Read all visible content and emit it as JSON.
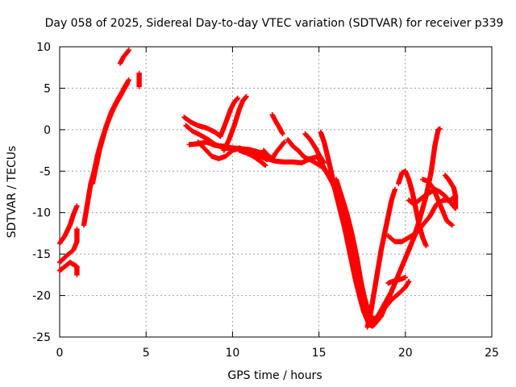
{
  "chart_data": {
    "type": "scatter",
    "title": "Day 058 of 2025, Sidereal Day-to-day VTEC variation (SDTVAR) for receiver p339",
    "xlabel": "GPS time / hours",
    "ylabel": "SDTVAR / TECUs",
    "xlim": [
      0,
      25
    ],
    "ylim": [
      -25,
      10
    ],
    "xticks": [
      0,
      5,
      10,
      15,
      20,
      25
    ],
    "yticks": [
      -25,
      -20,
      -15,
      -10,
      -5,
      0,
      5,
      10
    ],
    "xtick_labels": [
      "0",
      "5",
      "10",
      "15",
      "20",
      "25"
    ],
    "ytick_labels": [
      "-25",
      "-20",
      "-15",
      "-10",
      "-5",
      "0",
      "5",
      "10"
    ],
    "grid": true,
    "marker": "plus",
    "color": "#ff0000",
    "series": [
      {
        "points": [
          [
            0.0,
            -13.7
          ],
          [
            0.3,
            -12.8
          ],
          [
            0.6,
            -11.5
          ],
          [
            0.8,
            -10.2
          ],
          [
            1.0,
            -9.2
          ]
        ]
      },
      {
        "points": [
          [
            0.0,
            -17.0
          ],
          [
            0.3,
            -16.5
          ],
          [
            0.6,
            -16.0
          ],
          [
            1.0,
            -16.5
          ],
          [
            1.0,
            -17.5
          ]
        ]
      },
      {
        "points": [
          [
            0.0,
            -16.0
          ],
          [
            0.4,
            -15.2
          ],
          [
            0.8,
            -14.5
          ],
          [
            1.0,
            -13.5
          ],
          [
            1.0,
            -12.0
          ]
        ]
      },
      {
        "points": [
          [
            1.4,
            -11.5
          ],
          [
            1.6,
            -9.0
          ],
          [
            1.8,
            -6.5
          ],
          [
            2.0,
            -5.0
          ],
          [
            2.2,
            -3.0
          ],
          [
            2.4,
            -1.5
          ],
          [
            2.6,
            -0.2
          ],
          [
            2.8,
            1.0
          ],
          [
            3.0,
            2.2
          ],
          [
            3.2,
            3.0
          ],
          [
            3.4,
            3.8
          ],
          [
            3.6,
            4.5
          ],
          [
            3.8,
            5.3
          ],
          [
            4.0,
            6.0
          ]
        ]
      },
      {
        "points": [
          [
            1.9,
            -6.5
          ],
          [
            2.1,
            -4.5
          ],
          [
            2.3,
            -2.5
          ],
          [
            2.5,
            -1.0
          ],
          [
            2.7,
            0.5
          ],
          [
            2.9,
            1.5
          ],
          [
            3.1,
            2.5
          ],
          [
            3.3,
            3.3
          ],
          [
            3.5,
            4.0
          ],
          [
            3.7,
            4.8
          ],
          [
            3.9,
            5.5
          ]
        ]
      },
      {
        "points": [
          [
            3.5,
            8.0
          ],
          [
            3.7,
            8.8
          ],
          [
            3.9,
            9.3
          ],
          [
            4.0,
            9.6
          ]
        ]
      },
      {
        "points": [
          [
            4.6,
            6.8
          ],
          [
            4.6,
            6.3
          ],
          [
            4.6,
            5.2
          ]
        ]
      },
      {
        "points": [
          [
            7.2,
            1.5
          ],
          [
            7.6,
            0.9
          ],
          [
            8.0,
            0.5
          ],
          [
            8.5,
            0.2
          ],
          [
            9.0,
            -0.3
          ],
          [
            9.3,
            -0.8
          ]
        ]
      },
      {
        "points": [
          [
            7.3,
            0.5
          ],
          [
            7.7,
            -0.2
          ],
          [
            8.1,
            -0.6
          ],
          [
            8.6,
            -1.2
          ],
          [
            9.0,
            -1.8
          ],
          [
            9.5,
            -2.2
          ],
          [
            10.0,
            -2.3
          ],
          [
            10.5,
            -2.4
          ],
          [
            11.0,
            -2.6
          ],
          [
            11.5,
            -3.0
          ],
          [
            12.0,
            -3.5
          ],
          [
            12.5,
            -3.8
          ],
          [
            13.0,
            -3.9
          ],
          [
            13.5,
            -3.9
          ],
          [
            14.0,
            -4.0
          ],
          [
            14.5,
            -3.5
          ],
          [
            15.0,
            -3.2
          ]
        ]
      },
      {
        "points": [
          [
            7.5,
            -1.8
          ],
          [
            8.0,
            -1.7
          ],
          [
            8.5,
            -1.5
          ],
          [
            9.0,
            -1.9
          ],
          [
            9.5,
            -2.0
          ],
          [
            10.0,
            -2.2
          ],
          [
            10.5,
            -2.3
          ],
          [
            11.0,
            -2.4
          ],
          [
            11.5,
            -2.7
          ],
          [
            12.0,
            -3.0
          ]
        ]
      },
      {
        "points": [
          [
            8.0,
            -1.5
          ],
          [
            8.4,
            -2.3
          ],
          [
            8.8,
            -3.2
          ],
          [
            9.2,
            -3.5
          ],
          [
            9.6,
            -3.2
          ],
          [
            10.0,
            -2.5
          ],
          [
            10.4,
            -2.2
          ],
          [
            10.8,
            -2.6
          ],
          [
            11.2,
            -3.0
          ],
          [
            11.6,
            -3.2
          ],
          [
            12.0,
            -3.6
          ]
        ]
      },
      {
        "points": [
          [
            9.3,
            -0.8
          ],
          [
            9.6,
            0.8
          ],
          [
            9.9,
            2.5
          ],
          [
            10.1,
            3.3
          ],
          [
            10.3,
            3.8
          ]
        ]
      },
      {
        "points": [
          [
            9.5,
            -2.5
          ],
          [
            9.8,
            -1.2
          ],
          [
            10.1,
            0.5
          ],
          [
            10.4,
            2.5
          ],
          [
            10.6,
            3.5
          ],
          [
            10.8,
            4.0
          ]
        ]
      },
      {
        "points": [
          [
            10.4,
            -2.5
          ],
          [
            10.8,
            -2.8
          ],
          [
            11.2,
            -3.2
          ],
          [
            11.6,
            -3.8
          ],
          [
            11.9,
            -4.3
          ]
        ]
      },
      {
        "points": [
          [
            11.8,
            -2.5
          ],
          [
            12.0,
            -3.0
          ],
          [
            12.3,
            -3.5
          ],
          [
            12.5,
            -2.8
          ],
          [
            12.8,
            -2.0
          ],
          [
            13.0,
            -1.5
          ]
        ]
      },
      {
        "points": [
          [
            12.3,
            1.8
          ],
          [
            12.5,
            1.0
          ],
          [
            12.7,
            0.3
          ],
          [
            12.9,
            -0.5
          ]
        ]
      },
      {
        "points": [
          [
            13.2,
            -1.2
          ],
          [
            13.5,
            -2.0
          ],
          [
            13.8,
            -2.5
          ],
          [
            14.1,
            -3.2
          ],
          [
            14.4,
            -3.6
          ]
        ]
      },
      {
        "points": [
          [
            14.2,
            -0.5
          ],
          [
            14.5,
            -1.2
          ],
          [
            14.8,
            -2.2
          ],
          [
            15.0,
            -3.0
          ],
          [
            15.3,
            -4.0
          ]
        ]
      },
      {
        "points": [
          [
            14.4,
            -3.5
          ],
          [
            14.8,
            -4.0
          ],
          [
            15.2,
            -4.5
          ],
          [
            15.6,
            -5.5
          ],
          [
            16.0,
            -7.5
          ],
          [
            16.3,
            -9.5
          ],
          [
            16.6,
            -11.5
          ],
          [
            16.9,
            -14.0
          ],
          [
            17.1,
            -16.5
          ],
          [
            17.3,
            -19.0
          ],
          [
            17.5,
            -21.0
          ],
          [
            17.7,
            -22.5
          ],
          [
            17.9,
            -23.5
          ],
          [
            18.1,
            -23.7
          ],
          [
            18.3,
            -23.2
          ]
        ]
      },
      {
        "points": [
          [
            15.1,
            -0.3
          ],
          [
            15.3,
            -1.5
          ],
          [
            15.5,
            -3.2
          ],
          [
            15.7,
            -5.0
          ],
          [
            15.9,
            -7.0
          ],
          [
            16.2,
            -9.5
          ],
          [
            16.5,
            -12.0
          ],
          [
            16.8,
            -15.0
          ],
          [
            17.1,
            -18.0
          ],
          [
            17.4,
            -20.5
          ],
          [
            17.6,
            -22.0
          ],
          [
            17.8,
            -22.8
          ]
        ]
      },
      {
        "points": [
          [
            15.0,
            -3.5
          ],
          [
            15.4,
            -5.0
          ],
          [
            15.8,
            -6.5
          ],
          [
            16.2,
            -8.5
          ],
          [
            16.5,
            -10.5
          ],
          [
            16.8,
            -13.0
          ],
          [
            17.0,
            -15.0
          ],
          [
            17.2,
            -17.0
          ],
          [
            17.4,
            -19.0
          ],
          [
            17.6,
            -21.0
          ],
          [
            17.8,
            -22.3
          ],
          [
            18.0,
            -23.0
          ],
          [
            18.2,
            -23.2
          ]
        ]
      },
      {
        "points": [
          [
            16.0,
            -6.0
          ],
          [
            16.3,
            -8.0
          ],
          [
            16.6,
            -10.0
          ],
          [
            16.9,
            -12.5
          ],
          [
            17.2,
            -15.5
          ],
          [
            17.4,
            -18.0
          ],
          [
            17.6,
            -20.0
          ],
          [
            17.8,
            -21.5
          ],
          [
            18.0,
            -22.5
          ],
          [
            18.2,
            -22.8
          ],
          [
            18.4,
            -22.5
          ]
        ]
      },
      {
        "points": [
          [
            17.8,
            -23.8
          ],
          [
            18.0,
            -22.0
          ],
          [
            18.2,
            -19.5
          ],
          [
            18.4,
            -17.0
          ],
          [
            18.6,
            -14.5
          ],
          [
            18.8,
            -12.5
          ],
          [
            19.0,
            -10.5
          ],
          [
            19.2,
            -8.5
          ],
          [
            19.4,
            -7.2
          ]
        ]
      },
      {
        "points": [
          [
            18.0,
            -23.5
          ],
          [
            18.4,
            -22.5
          ],
          [
            18.8,
            -21.5
          ],
          [
            19.2,
            -20.5
          ],
          [
            19.6,
            -19.8
          ],
          [
            20.0,
            -19.0
          ],
          [
            20.2,
            -18.3
          ]
        ]
      },
      {
        "points": [
          [
            18.2,
            -23.5
          ],
          [
            18.6,
            -22.5
          ],
          [
            19.0,
            -20.5
          ],
          [
            19.4,
            -18.5
          ],
          [
            19.8,
            -16.5
          ],
          [
            20.2,
            -14.5
          ],
          [
            20.6,
            -12.5
          ],
          [
            21.0,
            -11.5
          ],
          [
            21.4,
            -10.5
          ],
          [
            21.8,
            -9.0
          ],
          [
            22.2,
            -8.5
          ],
          [
            22.6,
            -8.5
          ],
          [
            22.9,
            -8.0
          ]
        ]
      },
      {
        "points": [
          [
            18.4,
            -22.5
          ],
          [
            18.8,
            -21.0
          ],
          [
            19.2,
            -19.5
          ],
          [
            19.6,
            -17.5
          ],
          [
            20.0,
            -15.5
          ],
          [
            20.4,
            -13.5
          ],
          [
            20.8,
            -11.0
          ],
          [
            21.2,
            -8.0
          ],
          [
            21.5,
            -5.0
          ],
          [
            21.7,
            -2.0
          ],
          [
            21.9,
            0.0
          ],
          [
            22.0,
            0.1
          ]
        ]
      },
      {
        "points": [
          [
            19.0,
            -18.5
          ],
          [
            19.4,
            -18.2
          ],
          [
            19.8,
            -18.0
          ],
          [
            20.0,
            -17.8
          ]
        ]
      },
      {
        "points": [
          [
            19.0,
            -12.8
          ],
          [
            19.4,
            -13.5
          ],
          [
            19.8,
            -13.5
          ],
          [
            20.2,
            -13.0
          ],
          [
            20.6,
            -12.5
          ],
          [
            21.0,
            -11.5
          ]
        ]
      },
      {
        "points": [
          [
            19.6,
            -6.5
          ],
          [
            19.8,
            -5.2
          ],
          [
            20.0,
            -5.0
          ],
          [
            20.2,
            -6.0
          ],
          [
            20.4,
            -7.5
          ],
          [
            20.6,
            -9.5
          ],
          [
            20.8,
            -11.5
          ],
          [
            21.0,
            -13.0
          ],
          [
            21.2,
            -14.0
          ]
        ]
      },
      {
        "points": [
          [
            20.2,
            -8.5
          ],
          [
            20.5,
            -9.0
          ],
          [
            20.8,
            -8.5
          ],
          [
            21.1,
            -8.0
          ],
          [
            21.4,
            -7.6
          ],
          [
            21.7,
            -7.2
          ],
          [
            22.0,
            -7.5
          ],
          [
            22.3,
            -8.0
          ],
          [
            22.6,
            -8.8
          ]
        ]
      },
      {
        "points": [
          [
            21.0,
            -6.0
          ],
          [
            21.3,
            -6.2
          ],
          [
            21.6,
            -7.0
          ],
          [
            21.9,
            -8.5
          ],
          [
            22.2,
            -10.0
          ],
          [
            22.4,
            -11.0
          ],
          [
            22.7,
            -11.5
          ]
        ]
      },
      {
        "points": [
          [
            22.3,
            -5.5
          ],
          [
            22.5,
            -6.0
          ],
          [
            22.8,
            -7.0
          ],
          [
            22.9,
            -8.0
          ],
          [
            22.9,
            -9.5
          ],
          [
            22.7,
            -9.0
          ]
        ]
      }
    ]
  }
}
